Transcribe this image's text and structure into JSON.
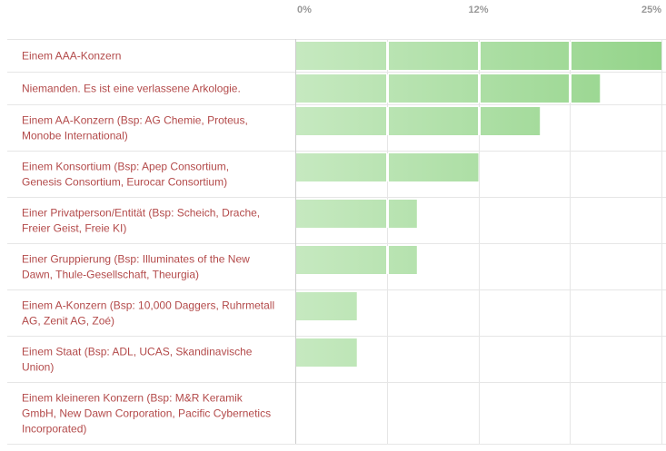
{
  "chart_data": {
    "type": "bar",
    "orientation": "horizontal",
    "title": "",
    "xlabel": "",
    "ylabel": "",
    "x_ticks": [
      {
        "value": 0,
        "label": "0%"
      },
      {
        "value": 12.5,
        "label": "12%"
      },
      {
        "value": 25,
        "label": "25%"
      }
    ],
    "xlim": [
      0,
      25
    ],
    "grid": true,
    "legend": "none",
    "categories": [
      [
        "Einem AAA-Konzern"
      ],
      [
        "Niemanden. Es ist eine verlassene Arkologie."
      ],
      [
        "Einem AA-Konzern (Bsp: AG Chemie, Proteus,",
        "Monobe International)"
      ],
      [
        "Einem Konsortium (Bsp: Apep Consortium,",
        "Genesis Consortium, Eurocar Consortium)"
      ],
      [
        "Einer Privatperson/Entität (Bsp: Scheich, Drache,",
        "Freier Geist, Freie KI)"
      ],
      [
        "Einer Gruppierung (Bsp: Illuminates of the New",
        "Dawn, Thule-Gesellschaft, Theurgia)"
      ],
      [
        "Einem A-Konzern (Bsp: 10,000 Daggers, Ruhrmetall",
        "AG, Zenit AG, Zoé)"
      ],
      [
        "Einem Staat (Bsp: ADL, UCAS, Skandinavische",
        "Union)"
      ],
      [
        "Einem kleineren Konzern (Bsp: M&R Keramik",
        "GmbH, New Dawn Corporation, Pacific Cybernetics",
        "Incorporated)"
      ]
    ],
    "values": [
      25,
      20.8,
      16.7,
      12.5,
      8.3,
      8.3,
      4.2,
      4.2,
      0
    ],
    "colors": {
      "bar_light": "#c6e9c0",
      "bar_dark": "#94d48a",
      "grid": "#e6e6e6",
      "separator": "#ffffff",
      "label": "#b34a4a",
      "tick": "#999999"
    }
  }
}
